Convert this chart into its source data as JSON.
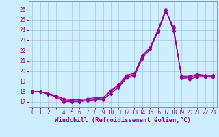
{
  "background_color": "#cceeff",
  "line_color": "#990099",
  "marker": "D",
  "marker_size": 2.5,
  "line_width": 0.8,
  "xlabel": "Windchill (Refroidissement éolien,°C)",
  "xlabel_fontsize": 6.5,
  "tick_fontsize": 5.5,
  "xlim": [
    -0.5,
    23.5
  ],
  "ylim": [
    16.5,
    26.8
  ],
  "yticks": [
    17,
    18,
    19,
    20,
    21,
    22,
    23,
    24,
    25,
    26
  ],
  "xticks": [
    0,
    1,
    2,
    3,
    4,
    5,
    6,
    7,
    8,
    9,
    10,
    11,
    12,
    13,
    14,
    15,
    16,
    17,
    18,
    19,
    20,
    21,
    22,
    23
  ],
  "xtick_labels": [
    "0",
    "1",
    "2",
    "3",
    "4",
    "5",
    "6",
    "7",
    "8",
    "9",
    "10",
    "11",
    "12",
    "13",
    "14",
    "15",
    "16",
    "17",
    "18",
    "19",
    "20",
    "21",
    "22",
    "23"
  ],
  "series": [
    [
      18.0,
      18.0,
      17.8,
      17.5,
      17.0,
      17.0,
      17.0,
      17.1,
      17.2,
      17.2,
      17.8,
      18.5,
      19.4,
      19.6,
      21.5,
      22.3,
      24.0,
      26.0,
      23.9,
      19.5,
      19.4,
      19.6,
      19.5,
      19.5
    ],
    [
      18.0,
      18.0,
      17.7,
      17.5,
      17.0,
      17.0,
      17.0,
      17.1,
      17.2,
      17.3,
      17.8,
      18.4,
      19.3,
      19.5,
      21.2,
      22.1,
      23.8,
      25.8,
      24.3,
      19.3,
      19.2,
      19.4,
      19.4,
      19.4
    ],
    [
      18.0,
      18.0,
      17.8,
      17.6,
      17.2,
      17.1,
      17.1,
      17.2,
      17.3,
      17.4,
      18.0,
      18.6,
      19.5,
      19.7,
      21.4,
      22.2,
      23.9,
      25.9,
      24.2,
      19.4,
      19.3,
      19.5,
      19.5,
      19.5
    ],
    [
      18.0,
      18.0,
      17.8,
      17.6,
      17.3,
      17.2,
      17.2,
      17.3,
      17.4,
      17.4,
      18.1,
      18.7,
      19.6,
      19.8,
      21.5,
      22.3,
      24.0,
      26.0,
      23.9,
      19.5,
      19.5,
      19.7,
      19.6,
      19.6
    ]
  ]
}
